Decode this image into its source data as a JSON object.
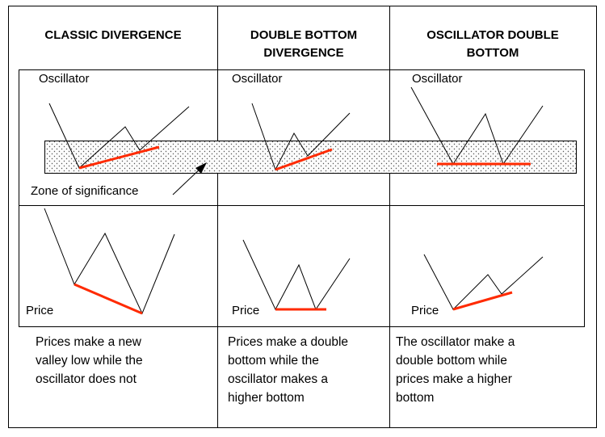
{
  "headers": {
    "col1": "CLASSIC DIVERGENCE",
    "col2": "DOUBLE BOTTOM\nDIVERGENCE",
    "col3": "OSCILLATOR DOUBLE\nBOTTOM"
  },
  "labels": {
    "oscillator": "Oscillator",
    "price": "Price",
    "zone": "Zone of significance"
  },
  "captions": {
    "col1": "Prices make a new\nvalley low while the\noscillator does not",
    "col2": "Prices make a double\nbottom while the\noscillator makes a\nhigher bottom",
    "col3": "The oscillator  make a\ndouble bottom while\nprices make a higher\nbottom"
  },
  "colors": {
    "trendline": "#ff2a00",
    "line": "#000000",
    "zone_fill": "#f0f0f0"
  }
}
